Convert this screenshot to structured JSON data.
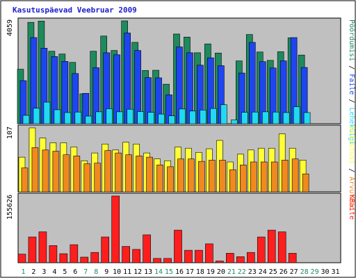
{
  "title": "Kasutuspäevad Veebruar 2009",
  "colors": {
    "title": "#1d1dce",
    "frame_bg": "#eeeeee",
    "panel_bg": "#c0c0c0",
    "visits": "#1e8a5e",
    "pages": "#1e46f0",
    "files": "#21d9f2",
    "hits": "#ffff33",
    "hosts": "#f08a1e",
    "kbytes": "#ff1e1e",
    "day_weekday": "#000000",
    "day_weekend": "#1e8a5e"
  },
  "chart_data": [
    {
      "type": "bar",
      "name": "traffic",
      "ymax": 4059,
      "ylabel_parts": [
        "Pöördumisi",
        "Faile",
        "Lehekülgi"
      ],
      "x": [
        "1",
        "2",
        "3",
        "4",
        "5",
        "6",
        "7",
        "8",
        "9",
        "10",
        "11",
        "12",
        "13",
        "14",
        "15",
        "16",
        "17",
        "18",
        "19",
        "20",
        "21",
        "22",
        "23",
        "24",
        "25",
        "26",
        "27",
        "28",
        "29",
        "30",
        "31"
      ],
      "series": [
        {
          "name": "Pöördumisi",
          "values": [
            2150,
            4000,
            4050,
            2860,
            2750,
            2420,
            1180,
            2860,
            3460,
            2890,
            4150,
            3210,
            2100,
            2110,
            1560,
            3540,
            3420,
            2800,
            3150,
            2790,
            0,
            2480,
            3520,
            2830,
            2500,
            2840,
            3390,
            2710,
            null,
            null,
            null
          ]
        },
        {
          "name": "Faile",
          "values": [
            1700,
            3400,
            2980,
            2650,
            2460,
            1980,
            1200,
            2210,
            2800,
            2720,
            3580,
            2890,
            1820,
            1810,
            1140,
            3030,
            2800,
            2310,
            2600,
            2290,
            0,
            2000,
            3210,
            2450,
            2200,
            2480,
            3400,
            2220,
            null,
            null,
            null
          ]
        },
        {
          "name": "Lehekülgi",
          "values": [
            330,
            610,
            850,
            550,
            440,
            460,
            300,
            470,
            590,
            470,
            570,
            480,
            450,
            380,
            310,
            580,
            500,
            540,
            600,
            750,
            150,
            450,
            460,
            470,
            460,
            440,
            670,
            440,
            null,
            null,
            null
          ]
        }
      ]
    },
    {
      "type": "bar",
      "name": "hits",
      "ymax": 107,
      "ylabel_parts": [
        "Külastusi",
        "Arvuteid"
      ],
      "x": [
        "1",
        "2",
        "3",
        "4",
        "5",
        "6",
        "7",
        "8",
        "9",
        "10",
        "11",
        "12",
        "13",
        "14",
        "15",
        "16",
        "17",
        "18",
        "19",
        "20",
        "21",
        "22",
        "23",
        "24",
        "25",
        "26",
        "27",
        "28",
        "29",
        "30",
        "31"
      ],
      "series": [
        {
          "name": "Külastusi",
          "values": [
            58,
            109,
            90,
            82,
            82,
            75,
            52,
            65,
            80,
            70,
            83,
            80,
            65,
            55,
            52,
            75,
            73,
            66,
            72,
            86,
            50,
            63,
            70,
            73,
            73,
            97,
            73,
            53,
            null,
            null,
            null
          ]
        },
        {
          "name": "Arvuteid",
          "values": [
            40,
            74,
            70,
            68,
            62,
            60,
            47,
            48,
            69,
            65,
            62,
            60,
            58,
            45,
            42,
            55,
            55,
            51,
            53,
            53,
            37,
            45,
            50,
            50,
            50,
            53,
            55,
            30,
            null,
            null,
            null
          ]
        }
      ]
    },
    {
      "type": "bar",
      "name": "kbytes",
      "ymax": 155626,
      "ylabel_parts": [
        "KBaite"
      ],
      "x": [
        "1",
        "2",
        "3",
        "4",
        "5",
        "6",
        "7",
        "8",
        "9",
        "10",
        "11",
        "12",
        "13",
        "14",
        "15",
        "16",
        "17",
        "18",
        "19",
        "20",
        "21",
        "22",
        "23",
        "24",
        "25",
        "26",
        "27",
        "28",
        "29",
        "30",
        "31"
      ],
      "series": [
        {
          "name": "KBaite",
          "values": [
            20000,
            60000,
            72000,
            40000,
            21000,
            42000,
            13000,
            24000,
            60000,
            157000,
            38000,
            31000,
            65000,
            10000,
            10000,
            76000,
            29000,
            29000,
            44000,
            4000,
            22000,
            14000,
            24000,
            60000,
            76000,
            72000,
            22000,
            null,
            null,
            null,
            null
          ]
        }
      ]
    }
  ],
  "days": [
    {
      "label": "1",
      "weekend": true
    },
    {
      "label": "2",
      "weekend": false
    },
    {
      "label": "3",
      "weekend": false
    },
    {
      "label": "4",
      "weekend": false
    },
    {
      "label": "5",
      "weekend": false
    },
    {
      "label": "6",
      "weekend": false
    },
    {
      "label": "7",
      "weekend": true
    },
    {
      "label": "8",
      "weekend": true
    },
    {
      "label": "9",
      "weekend": false
    },
    {
      "label": "10",
      "weekend": false
    },
    {
      "label": "11",
      "weekend": false
    },
    {
      "label": "12",
      "weekend": false
    },
    {
      "label": "13",
      "weekend": false
    },
    {
      "label": "14",
      "weekend": true
    },
    {
      "label": "15",
      "weekend": true
    },
    {
      "label": "16",
      "weekend": false
    },
    {
      "label": "17",
      "weekend": false
    },
    {
      "label": "18",
      "weekend": false
    },
    {
      "label": "19",
      "weekend": false
    },
    {
      "label": "20",
      "weekend": false
    },
    {
      "label": "21",
      "weekend": true
    },
    {
      "label": "22",
      "weekend": true
    },
    {
      "label": "23",
      "weekend": false
    },
    {
      "label": "24",
      "weekend": false
    },
    {
      "label": "25",
      "weekend": false
    },
    {
      "label": "26",
      "weekend": false
    },
    {
      "label": "27",
      "weekend": false
    },
    {
      "label": "28",
      "weekend": true
    },
    {
      "label": "29",
      "weekend": true
    },
    {
      "label": "30",
      "weekend": false
    },
    {
      "label": "31",
      "weekend": false
    }
  ]
}
